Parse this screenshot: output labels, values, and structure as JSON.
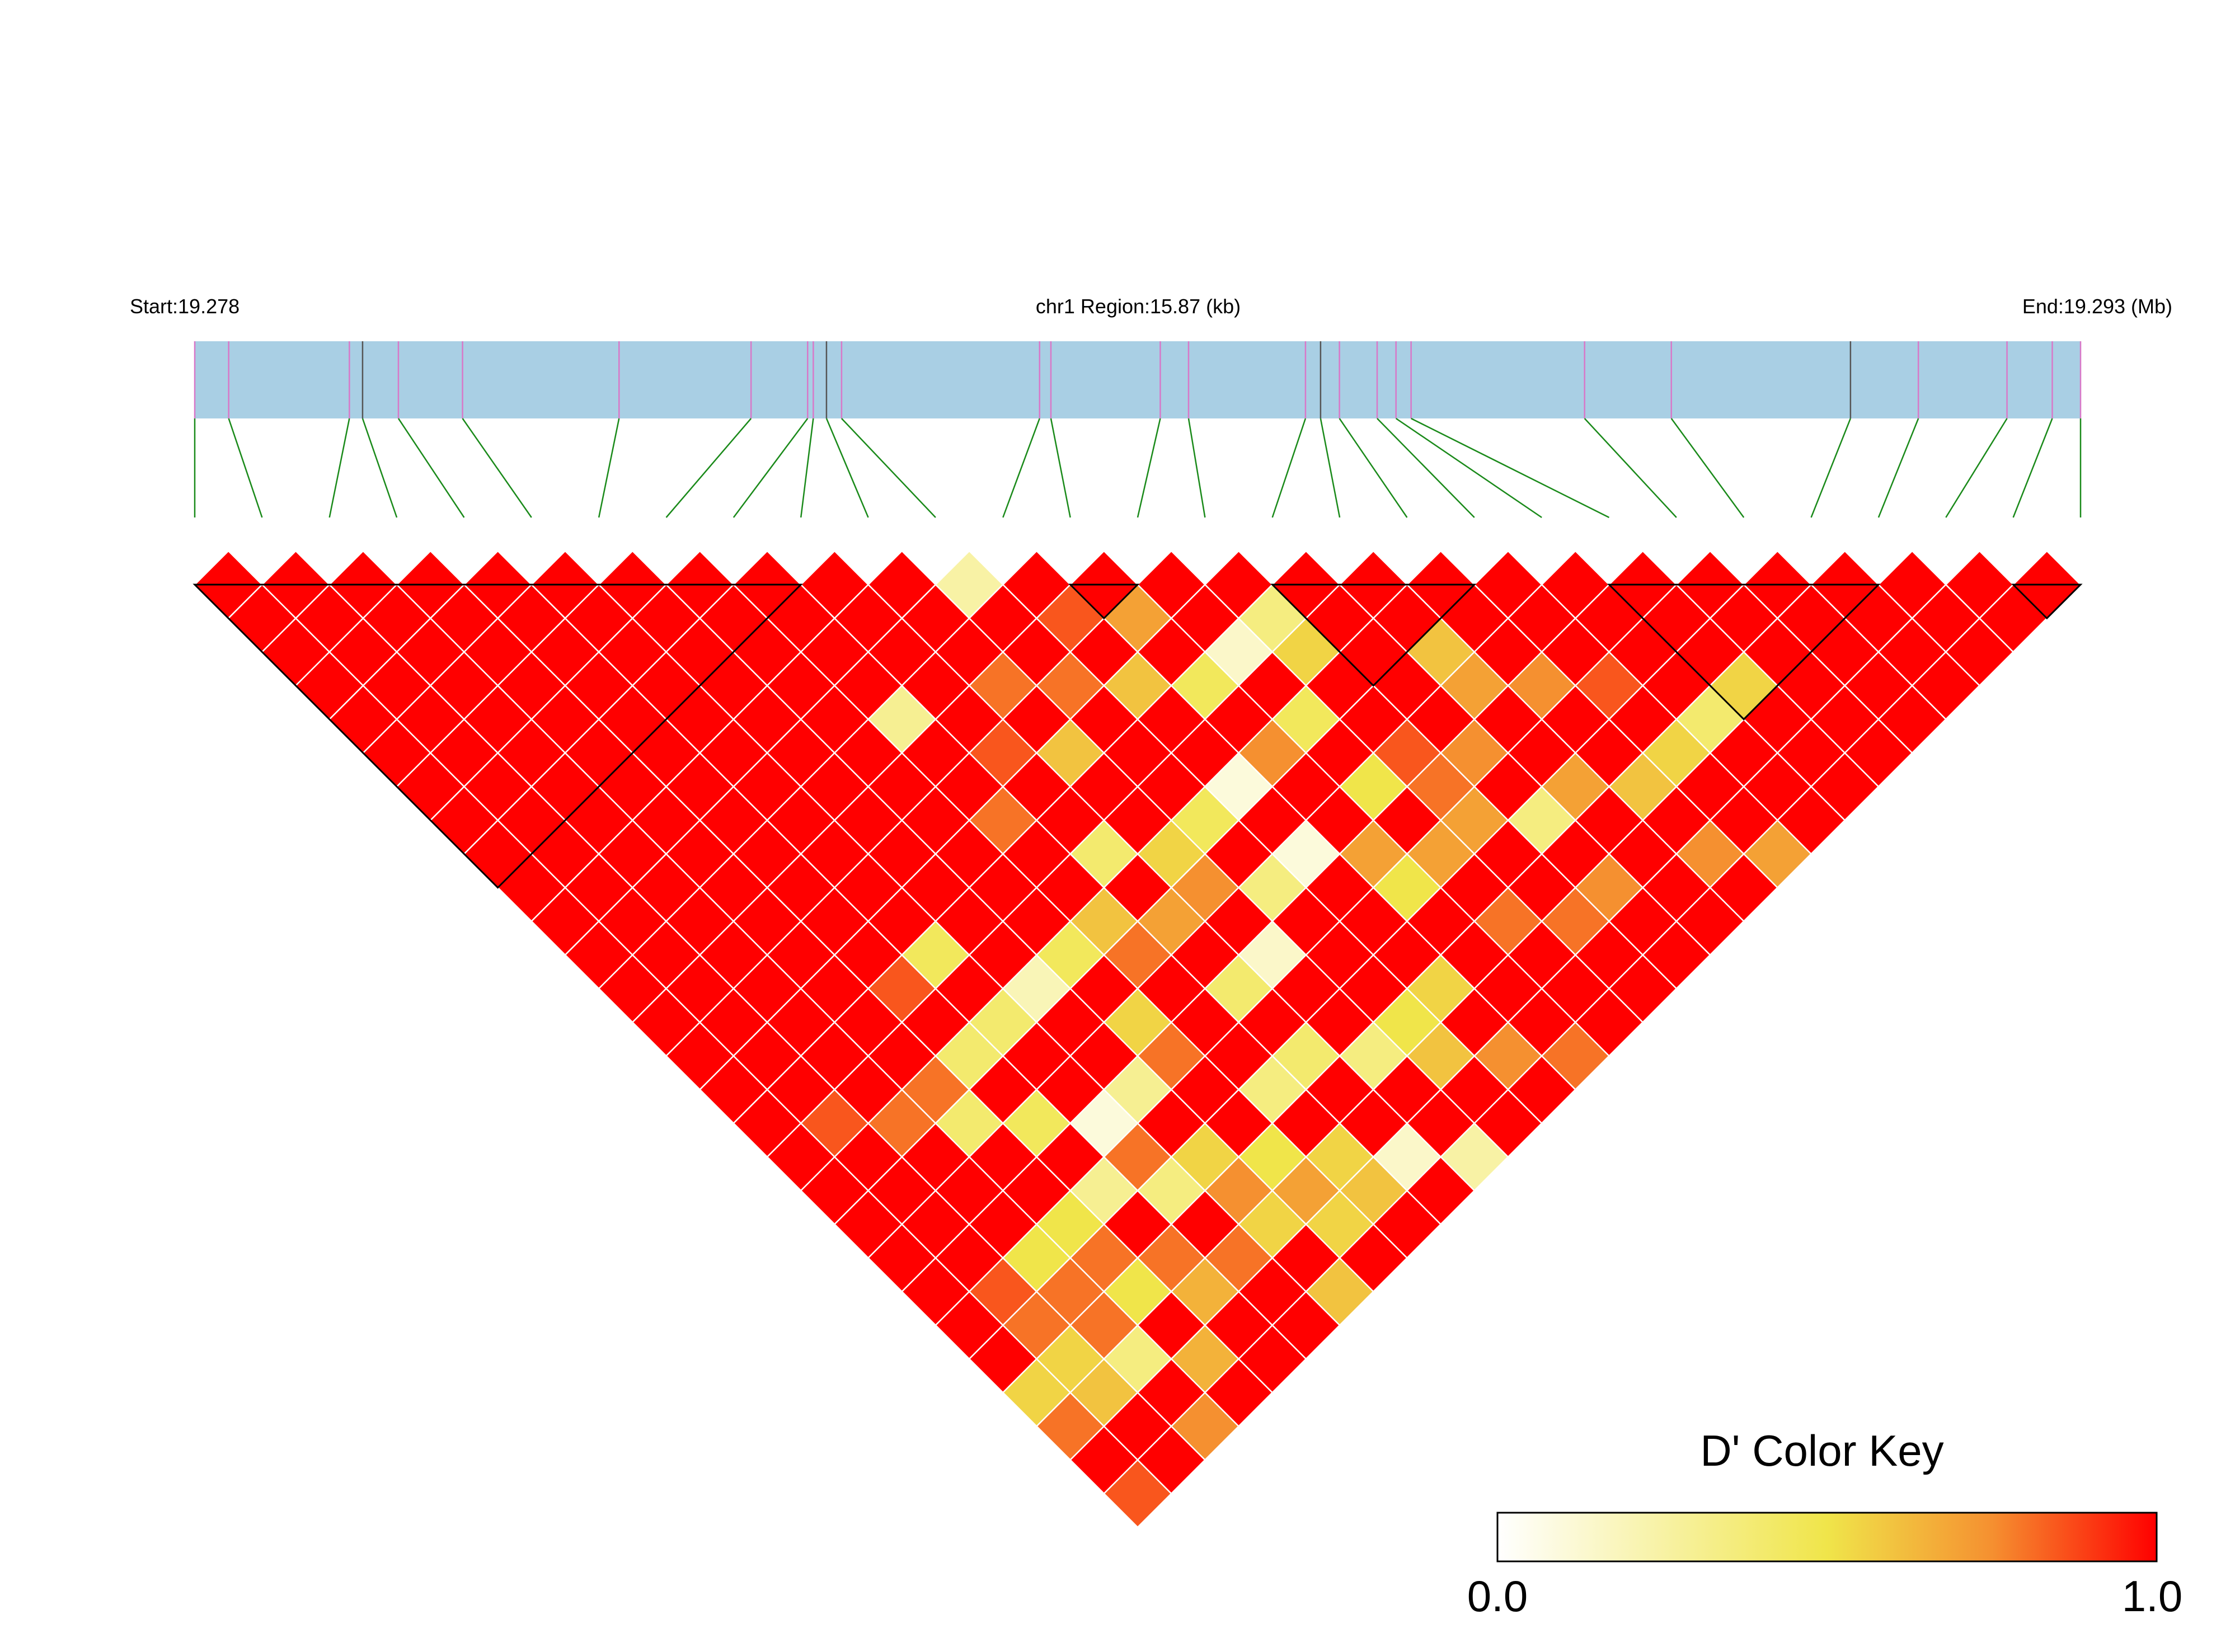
{
  "chart_data": {
    "type": "heatmap",
    "title": "",
    "region": {
      "start_label": "Start:19.278",
      "center_label": "chr1 Region:15.87 (kb)",
      "end_label": "End:19.293 (Mb)",
      "start_mb": 19.278,
      "end_mb": 19.293
    },
    "snp_positions_fraction": [
      0.0,
      0.018,
      0.082,
      0.089,
      0.108,
      0.142,
      0.225,
      0.295,
      0.325,
      0.328,
      0.335,
      0.343,
      0.448,
      0.454,
      0.512,
      0.527,
      0.589,
      0.597,
      0.607,
      0.627,
      0.637,
      0.645,
      0.737,
      0.783,
      0.878,
      0.914,
      0.961,
      0.985,
      1.0
    ],
    "blocks": [
      [
        0,
        9
      ],
      [
        13,
        14
      ],
      [
        16,
        19
      ],
      [
        21,
        25
      ],
      [
        27,
        28
      ]
    ],
    "colors": {
      "background": "#a9cfe4",
      "snp_line_pink": "#d878c8",
      "snp_line_dark": "#555555",
      "connector": "#1a8a1a",
      "cell_border": "#ffffff",
      "block_line": "#000000",
      "key_low": "#ffffff",
      "key_mid": "#f0e54a",
      "key_high": "#ff0000"
    },
    "color_key": {
      "title": "D' Color Key",
      "min_label": "0.0",
      "max_label": "1.0",
      "min": 0.0,
      "max": 1.0
    },
    "low_cells": [
      [
        11,
        12,
        0.25
      ],
      [
        15,
        17,
        0.35
      ],
      [
        14,
        17,
        0.15
      ],
      [
        13,
        17,
        0.45
      ],
      [
        8,
        13,
        0.3
      ],
      [
        12,
        16,
        0.6
      ],
      [
        15,
        18,
        0.55
      ],
      [
        10,
        16,
        0.6
      ],
      [
        14,
        19,
        0.45
      ],
      [
        17,
        20,
        0.6
      ],
      [
        13,
        19,
        0.75
      ],
      [
        12,
        19,
        0.1
      ],
      [
        11,
        19,
        0.45
      ],
      [
        14,
        21,
        0.5
      ],
      [
        9,
        18,
        0.4
      ],
      [
        10,
        19,
        0.55
      ],
      [
        12,
        21,
        0.1
      ],
      [
        11,
        21,
        0.35
      ],
      [
        13,
        23,
        0.5
      ],
      [
        20,
        25,
        0.4
      ],
      [
        19,
        25,
        0.55
      ],
      [
        18,
        25,
        0.6
      ],
      [
        21,
        25,
        0.55
      ],
      [
        8,
        19,
        0.6
      ],
      [
        7,
        19,
        0.45
      ],
      [
        10,
        22,
        0.15
      ],
      [
        16,
        24,
        0.35
      ],
      [
        9,
        22,
        0.4
      ],
      [
        5,
        17,
        0.45
      ],
      [
        6,
        19,
        0.2
      ],
      [
        5,
        19,
        0.4
      ],
      [
        4,
        19,
        0.4
      ],
      [
        7,
        21,
        0.55
      ],
      [
        6,
        22,
        0.3
      ],
      [
        11,
        25,
        0.5
      ],
      [
        9,
        24,
        0.4
      ],
      [
        10,
        25,
        0.35
      ],
      [
        8,
        24,
        0.35
      ],
      [
        5,
        22,
        0.1
      ],
      [
        4,
        21,
        0.45
      ],
      [
        3,
        20,
        0.4
      ],
      [
        6,
        24,
        0.55
      ],
      [
        7,
        25,
        0.5
      ],
      [
        8,
        26,
        0.55
      ],
      [
        4,
        23,
        0.3
      ],
      [
        5,
        24,
        0.35
      ],
      [
        3,
        23,
        0.5
      ],
      [
        2,
        23,
        0.5
      ],
      [
        9,
        27,
        0.15
      ],
      [
        10,
        28,
        0.25
      ],
      [
        6,
        26,
        0.55
      ],
      [
        11,
        25,
        0.5
      ],
      [
        3,
        25,
        0.5
      ],
      [
        4,
        26,
        0.65
      ],
      [
        2,
        26,
        0.35
      ],
      [
        3,
        27,
        0.65
      ],
      [
        1,
        25,
        0.55
      ],
      [
        0,
        25,
        0.55
      ],
      [
        1,
        26,
        0.6
      ],
      [
        0,
        28,
        0.85
      ],
      [
        2,
        28,
        0.75
      ],
      [
        12,
        25,
        0.55
      ],
      [
        11,
        26,
        0.6
      ],
      [
        8,
        27,
        0.6
      ],
      [
        7,
        27,
        0.55
      ],
      [
        6,
        28,
        0.6
      ],
      [
        14,
        23,
        0.7
      ],
      [
        13,
        22,
        0.7
      ],
      [
        17,
        24,
        0.7
      ],
      [
        15,
        22,
        0.8
      ],
      [
        16,
        26,
        0.75
      ],
      [
        18,
        27,
        0.75
      ],
      [
        19,
        28,
        0.7
      ],
      [
        12,
        27,
        0.75
      ],
      [
        13,
        28,
        0.8
      ],
      [
        18,
        22,
        0.75
      ],
      [
        19,
        23,
        0.85
      ],
      [
        14,
        25,
        0.8
      ],
      [
        15,
        26,
        0.8
      ],
      [
        3,
        19,
        0.8
      ],
      [
        2,
        19,
        0.8
      ],
      [
        1,
        18,
        0.85
      ],
      [
        4,
        17,
        0.85
      ],
      [
        8,
        16,
        0.8
      ],
      [
        9,
        15,
        0.85
      ],
      [
        10,
        14,
        0.8
      ],
      [
        11,
        15,
        0.8
      ],
      [
        12,
        14,
        0.85
      ],
      [
        13,
        15,
        0.7
      ],
      [
        10,
        20,
        0.75
      ],
      [
        9,
        20,
        0.7
      ],
      [
        8,
        20,
        0.8
      ],
      [
        7,
        22,
        0.8
      ],
      [
        5,
        23,
        0.8
      ],
      [
        6,
        25,
        0.75
      ],
      [
        1,
        24,
        0.8
      ],
      [
        2,
        25,
        0.8
      ],
      [
        0,
        26,
        0.8
      ],
      [
        7,
        26,
        0.7
      ],
      [
        4,
        25,
        0.8
      ],
      [
        5,
        26,
        0.8
      ],
      [
        3,
        24,
        0.8
      ],
      [
        2,
        24,
        0.8
      ],
      [
        1,
        23,
        0.85
      ],
      [
        17,
        21,
        0.7
      ],
      [
        16,
        22,
        0.75
      ],
      [
        15,
        23,
        0.7
      ],
      [
        15,
        21,
        0.85
      ]
    ]
  }
}
